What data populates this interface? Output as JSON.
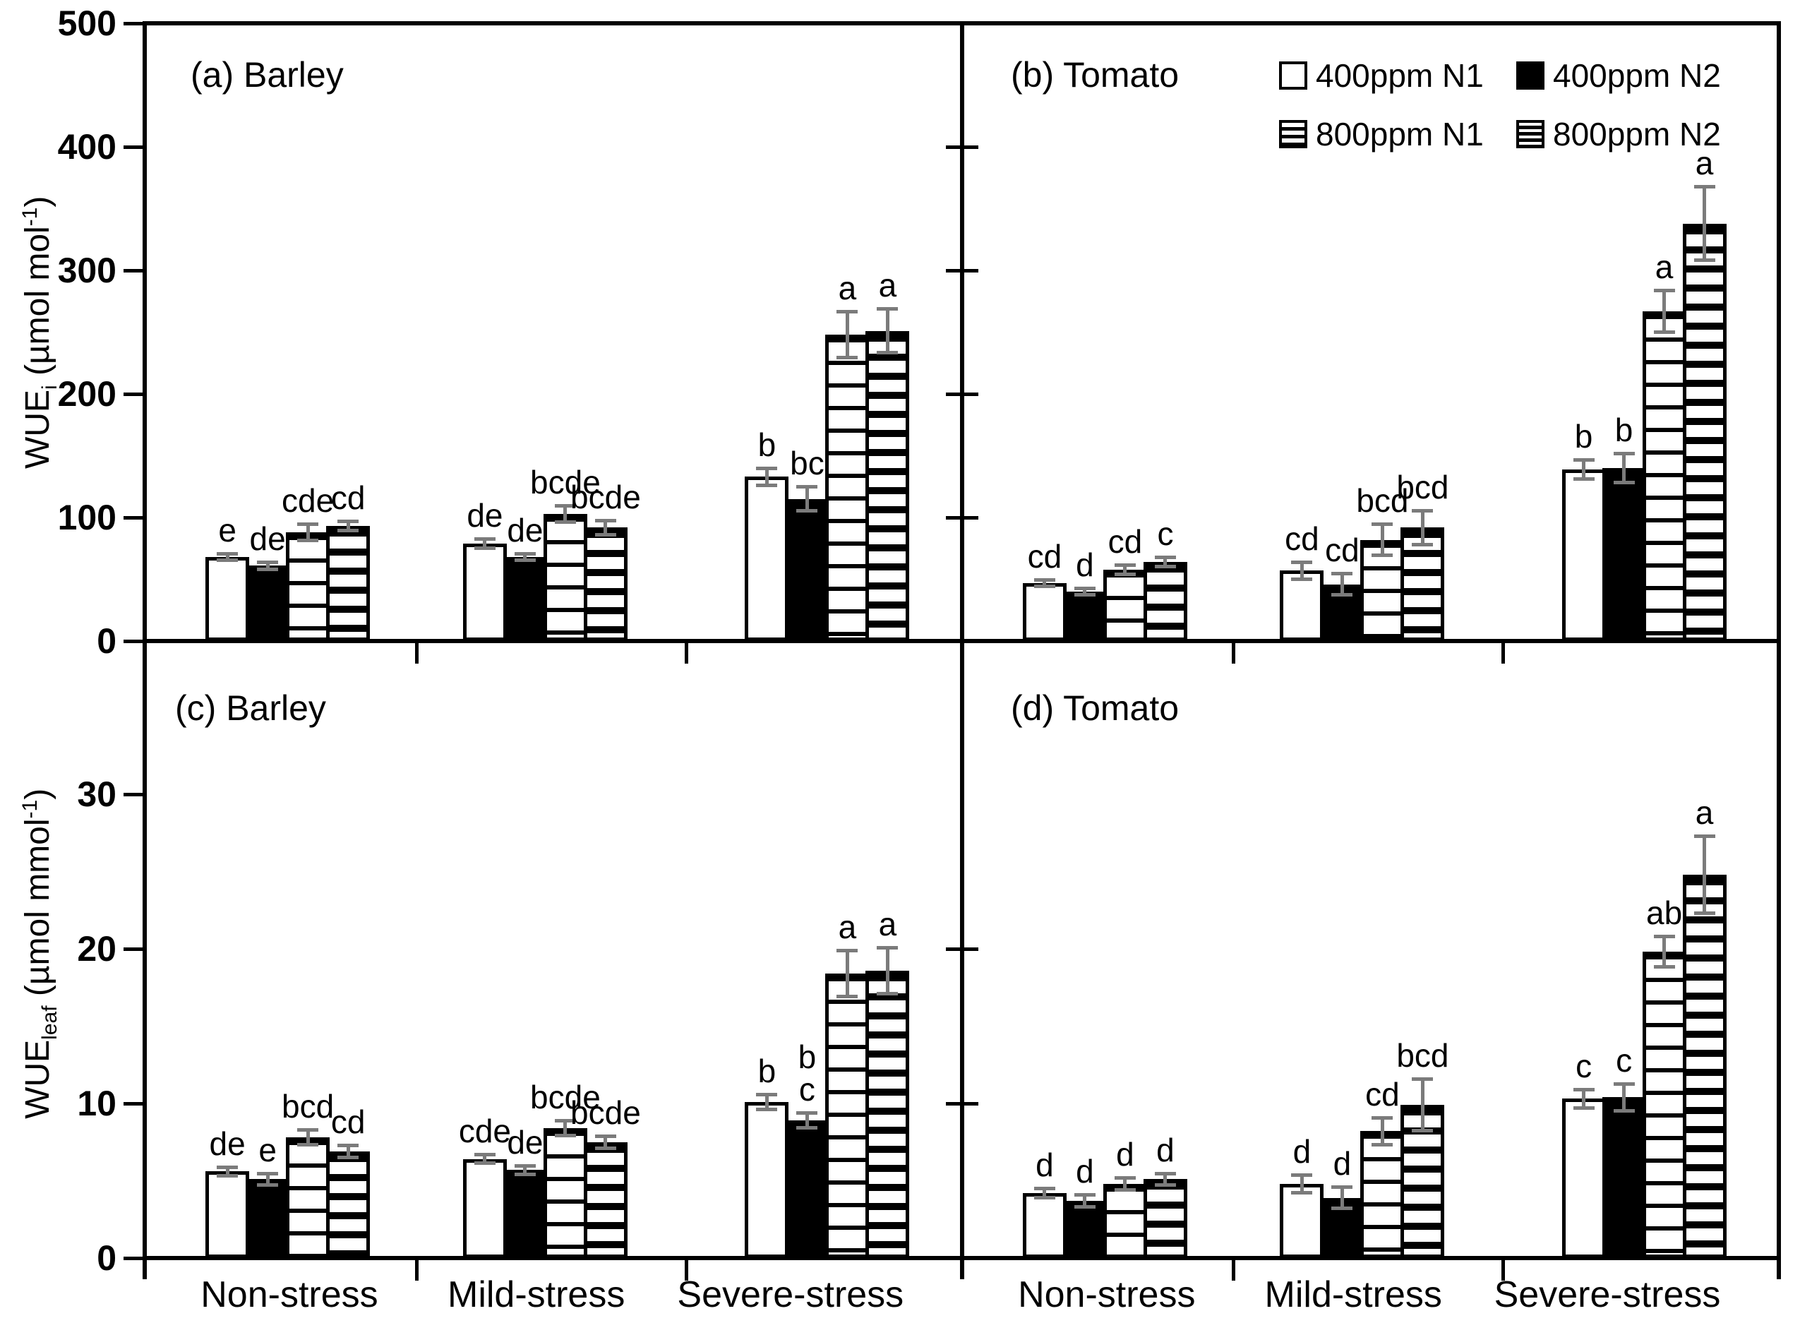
{
  "figure": {
    "panel_titles": {
      "a": "(a) Barley",
      "b": "(b) Tomato",
      "c": "(c) Barley",
      "d": "(d) Tomato"
    },
    "legend": {
      "items": [
        {
          "label": "400ppm N1",
          "pattern": "white"
        },
        {
          "label": "400ppm N2",
          "pattern": "black"
        },
        {
          "label": "800ppm N1",
          "pattern": "stripe"
        },
        {
          "label": "800ppm N2",
          "pattern": "stripe-dense"
        }
      ]
    },
    "colors": {
      "bar_outline": "#000000",
      "error_bar": "#7b7b7b",
      "background": "#ffffff"
    }
  },
  "chart_data": {
    "type": "bar",
    "categories": [
      "Non-stress",
      "Mild-stress",
      "Severe-stress"
    ],
    "series_names": [
      "400ppm N1",
      "400ppm N2",
      "800ppm N1",
      "800ppm N2"
    ],
    "legend_position": "top-right",
    "grid": false,
    "ylabel_top": {
      "base": "WUE",
      "sub": "i",
      "mid": " (µmol mol",
      "sup": "-1",
      "end": ")"
    },
    "ylabel_bottom": {
      "base": "WUE",
      "sub": "leaf",
      "mid": " (µmol mmol",
      "sup": "-1",
      "end": ")"
    },
    "panels": [
      {
        "id": "a",
        "title": "(a) Barley",
        "crop": "Barley",
        "measure": "WUEi",
        "ylim": [
          0,
          500
        ],
        "yticks": [
          0,
          100,
          200,
          300,
          400,
          500
        ],
        "groups": [
          {
            "category": "Non-stress",
            "bars": [
              {
                "series": "400ppm N1",
                "value": 68,
                "err": 3,
                "letter": "e"
              },
              {
                "series": "400ppm N2",
                "value": 61,
                "err": 3,
                "letter": "de"
              },
              {
                "series": "800ppm N1",
                "value": 88,
                "err": 7,
                "letter": "cde"
              },
              {
                "series": "800ppm N2",
                "value": 93,
                "err": 4,
                "letter": "cd"
              }
            ]
          },
          {
            "category": "Mild-stress",
            "bars": [
              {
                "series": "400ppm N1",
                "value": 79,
                "err": 4,
                "letter": "de"
              },
              {
                "series": "400ppm N2",
                "value": 68,
                "err": 3,
                "letter": "de"
              },
              {
                "series": "800ppm N1",
                "value": 103,
                "err": 7,
                "letter": "bcde"
              },
              {
                "series": "800ppm N2",
                "value": 92,
                "err": 6,
                "letter": "bcde"
              }
            ]
          },
          {
            "category": "Severe-stress",
            "bars": [
              {
                "series": "400ppm N1",
                "value": 133,
                "err": 7,
                "letter": "b"
              },
              {
                "series": "400ppm N2",
                "value": 115,
                "err": 10,
                "letter": "bc"
              },
              {
                "series": "800ppm N1",
                "value": 248,
                "err": 19,
                "letter": "a"
              },
              {
                "series": "800ppm N2",
                "value": 251,
                "err": 18,
                "letter": "a"
              }
            ]
          }
        ]
      },
      {
        "id": "b",
        "title": "(b) Tomato",
        "crop": "Tomato",
        "measure": "WUEi",
        "ylim": [
          0,
          500
        ],
        "yticks": [
          0,
          100,
          200,
          300,
          400,
          500
        ],
        "groups": [
          {
            "category": "Non-stress",
            "bars": [
              {
                "series": "400ppm N1",
                "value": 47,
                "err": 3,
                "letter": "cd"
              },
              {
                "series": "400ppm N2",
                "value": 40,
                "err": 3,
                "letter": "d"
              },
              {
                "series": "800ppm N1",
                "value": 58,
                "err": 4,
                "letter": "cd"
              },
              {
                "series": "800ppm N2",
                "value": 64,
                "err": 4,
                "letter": "c"
              }
            ]
          },
          {
            "category": "Mild-stress",
            "bars": [
              {
                "series": "400ppm N1",
                "value": 57,
                "err": 7,
                "letter": "cd"
              },
              {
                "series": "400ppm N2",
                "value": 46,
                "err": 9,
                "letter": "cd"
              },
              {
                "series": "800ppm N1",
                "value": 82,
                "err": 13,
                "letter": "bcd"
              },
              {
                "series": "800ppm N2",
                "value": 92,
                "err": 14,
                "letter": "bcd"
              }
            ]
          },
          {
            "category": "Severe-stress",
            "bars": [
              {
                "series": "400ppm N1",
                "value": 139,
                "err": 8,
                "letter": "b"
              },
              {
                "series": "400ppm N2",
                "value": 140,
                "err": 12,
                "letter": "b"
              },
              {
                "series": "800ppm N1",
                "value": 267,
                "err": 17,
                "letter": "a"
              },
              {
                "series": "800ppm N2",
                "value": 338,
                "err": 30,
                "letter": "a"
              }
            ]
          }
        ]
      },
      {
        "id": "c",
        "title": "(c) Barley",
        "crop": "Barley",
        "measure": "WUEleaf",
        "ylim": [
          0,
          30
        ],
        "yticks": [
          0,
          10,
          20,
          30
        ],
        "groups": [
          {
            "category": "Non-stress",
            "bars": [
              {
                "series": "400ppm N1",
                "value": 5.6,
                "err": 0.3,
                "letter": "de"
              },
              {
                "series": "400ppm N2",
                "value": 5.1,
                "err": 0.4,
                "letter": "e"
              },
              {
                "series": "800ppm N1",
                "value": 7.8,
                "err": 0.5,
                "letter": "bcd"
              },
              {
                "series": "800ppm N2",
                "value": 6.9,
                "err": 0.4,
                "letter": "cd"
              }
            ]
          },
          {
            "category": "Mild-stress",
            "bars": [
              {
                "series": "400ppm N1",
                "value": 6.4,
                "err": 0.3,
                "letter": "cde"
              },
              {
                "series": "400ppm N2",
                "value": 5.7,
                "err": 0.3,
                "letter": "de"
              },
              {
                "series": "800ppm N1",
                "value": 8.4,
                "err": 0.5,
                "letter": "bcde"
              },
              {
                "series": "800ppm N2",
                "value": 7.5,
                "err": 0.4,
                "letter": "bcde"
              }
            ]
          },
          {
            "category": "Severe-stress",
            "bars": [
              {
                "series": "400ppm N1",
                "value": 10.1,
                "err": 0.5,
                "letter": "b"
              },
              {
                "series": "400ppm N2",
                "value": 8.9,
                "err": 0.5,
                "letter": "b\nc"
              },
              {
                "series": "800ppm N1",
                "value": 18.4,
                "err": 1.5,
                "letter": "a"
              },
              {
                "series": "800ppm N2",
                "value": 18.6,
                "err": 1.5,
                "letter": "a"
              }
            ]
          }
        ]
      },
      {
        "id": "d",
        "title": "(d) Tomato",
        "crop": "Tomato",
        "measure": "WUEleaf",
        "ylim": [
          0,
          30
        ],
        "yticks": [
          0,
          10,
          20,
          30
        ],
        "groups": [
          {
            "category": "Non-stress",
            "bars": [
              {
                "series": "400ppm N1",
                "value": 4.2,
                "err": 0.3,
                "letter": "d"
              },
              {
                "series": "400ppm N2",
                "value": 3.7,
                "err": 0.4,
                "letter": "d"
              },
              {
                "series": "800ppm N1",
                "value": 4.8,
                "err": 0.4,
                "letter": "d"
              },
              {
                "series": "800ppm N2",
                "value": 5.1,
                "err": 0.4,
                "letter": "d"
              }
            ]
          },
          {
            "category": "Mild-stress",
            "bars": [
              {
                "series": "400ppm N1",
                "value": 4.8,
                "err": 0.6,
                "letter": "d"
              },
              {
                "series": "400ppm N2",
                "value": 3.9,
                "err": 0.7,
                "letter": "d"
              },
              {
                "series": "800ppm N1",
                "value": 8.2,
                "err": 0.9,
                "letter": "cd"
              },
              {
                "series": "800ppm N2",
                "value": 9.9,
                "err": 1.7,
                "letter": "bcd"
              }
            ]
          },
          {
            "category": "Severe-stress",
            "bars": [
              {
                "series": "400ppm N1",
                "value": 10.3,
                "err": 0.6,
                "letter": "c"
              },
              {
                "series": "400ppm N2",
                "value": 10.4,
                "err": 0.9,
                "letter": "c"
              },
              {
                "series": "800ppm N1",
                "value": 19.8,
                "err": 1.0,
                "letter": "ab"
              },
              {
                "series": "800ppm N2",
                "value": 24.8,
                "err": 2.5,
                "letter": "a"
              }
            ]
          }
        ]
      }
    ]
  }
}
